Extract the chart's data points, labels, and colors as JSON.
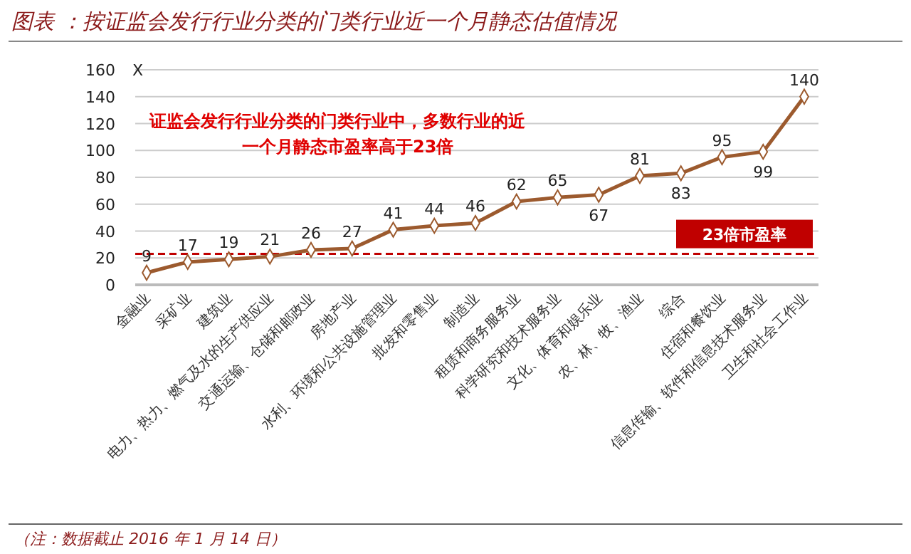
{
  "chart_data": {
    "type": "line",
    "title": "图表 ：按证监会发行行业分类的门类行业近一个月静态估值情况",
    "ylabel": "X",
    "categories": [
      "金融业",
      "采矿业",
      "建筑业",
      "电力、热力、燃气及水的生产供应业",
      "交通运输、仓储和邮政业",
      "房地产业",
      "水利、环境和公共设施管理业",
      "批发和零售业",
      "制造业",
      "租赁和商务服务业",
      "科学研究和技术服务业",
      "文化、体育和娱乐业",
      "农、林、牧、渔业",
      "综合",
      "住宿和餐饮业",
      "信息传输、软件和信息技术服务业",
      "卫生和社会工作业"
    ],
    "series": [
      {
        "color": "#9c5a2e",
        "values": [
          9,
          17,
          19,
          21,
          26,
          27,
          41,
          44,
          46,
          62,
          65,
          67,
          81,
          83,
          95,
          99,
          140
        ]
      }
    ],
    "ylim": [
      0,
      160
    ],
    "yticks": [
      0,
      20,
      40,
      60,
      80,
      100,
      120,
      140,
      160
    ],
    "grid": "y",
    "marker": "diamond",
    "data_labels": true,
    "ref_lines": [
      {
        "axis": "y",
        "value": 23,
        "label": "23倍市盈率",
        "color": "#c00000",
        "line_style": "dashed"
      }
    ],
    "annotations": [
      "证监会发行行业分类的门类行业中，多数行业的近一个月静态市盈率高于23倍",
      "（注：数据截止 2016 年 1 月 14 日）"
    ]
  }
}
